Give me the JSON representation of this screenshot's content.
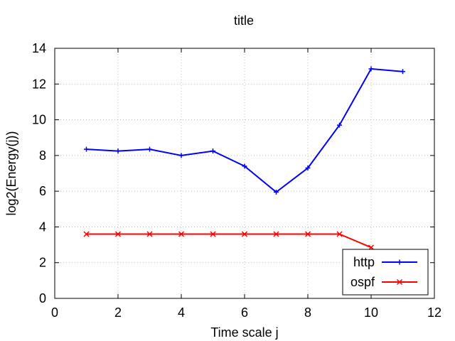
{
  "chart_data": {
    "type": "line",
    "title": "title",
    "xlabel": "Time scale j",
    "ylabel": "log2(Energy(j))",
    "xlim": [
      0,
      12
    ],
    "ylim": [
      0,
      14
    ],
    "x_ticks": [
      0,
      2,
      4,
      6,
      8,
      10,
      12
    ],
    "y_ticks": [
      0,
      2,
      4,
      6,
      8,
      10,
      12,
      14
    ],
    "grid": true,
    "legend_position": "bottom-right",
    "x": [
      1,
      2,
      3,
      4,
      5,
      6,
      7,
      8,
      9,
      10,
      11
    ],
    "series": [
      {
        "name": "http",
        "color": "#0000ff",
        "marker": "plus",
        "values": [
          8.35,
          8.25,
          8.35,
          8.0,
          8.25,
          7.4,
          5.95,
          7.3,
          9.7,
          12.85,
          12.7
        ]
      },
      {
        "name": "ospf",
        "color": "#ff0000",
        "marker": "x",
        "values": [
          3.6,
          3.6,
          3.6,
          3.6,
          3.6,
          3.6,
          3.6,
          3.6,
          3.6,
          2.85,
          1.25
        ]
      }
    ]
  }
}
